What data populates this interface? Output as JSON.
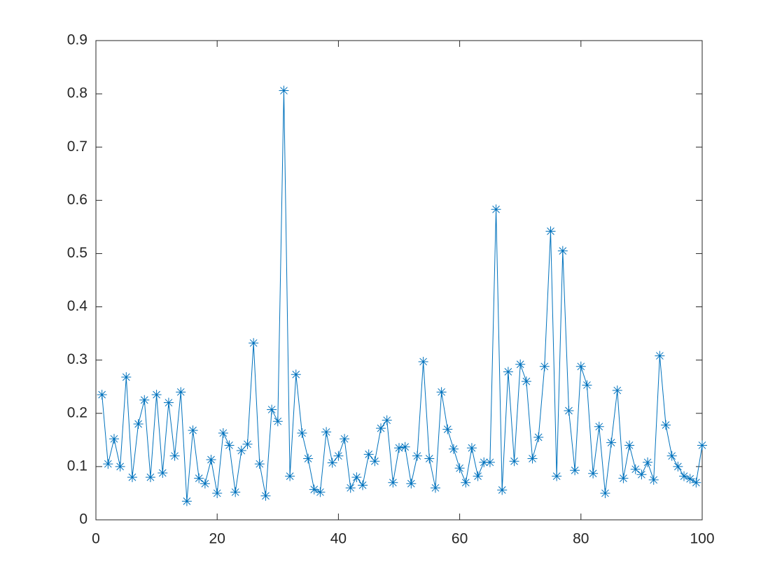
{
  "chart_data": {
    "type": "line",
    "marker": "asterisk",
    "color": "#0072bd",
    "x": [
      1,
      2,
      3,
      4,
      5,
      6,
      7,
      8,
      9,
      10,
      11,
      12,
      13,
      14,
      15,
      16,
      17,
      18,
      19,
      20,
      21,
      22,
      23,
      24,
      25,
      26,
      27,
      28,
      29,
      30,
      31,
      32,
      33,
      34,
      35,
      36,
      37,
      38,
      39,
      40,
      41,
      42,
      43,
      44,
      45,
      46,
      47,
      48,
      49,
      50,
      51,
      52,
      53,
      54,
      55,
      56,
      57,
      58,
      59,
      60,
      61,
      62,
      63,
      64,
      65,
      66,
      67,
      68,
      69,
      70,
      71,
      72,
      73,
      74,
      75,
      76,
      77,
      78,
      79,
      80,
      81,
      82,
      83,
      84,
      85,
      86,
      87,
      88,
      89,
      90,
      91,
      92,
      93,
      94,
      95,
      96,
      97,
      98,
      99,
      100
    ],
    "values": [
      0.235,
      0.105,
      0.152,
      0.1,
      0.268,
      0.08,
      0.18,
      0.225,
      0.08,
      0.235,
      0.088,
      0.22,
      0.12,
      0.24,
      0.035,
      0.168,
      0.078,
      0.068,
      0.113,
      0.05,
      0.163,
      0.14,
      0.052,
      0.13,
      0.142,
      0.332,
      0.105,
      0.045,
      0.207,
      0.185,
      0.806,
      0.082,
      0.273,
      0.163,
      0.115,
      0.057,
      0.052,
      0.165,
      0.107,
      0.12,
      0.152,
      0.06,
      0.08,
      0.065,
      0.123,
      0.11,
      0.172,
      0.187,
      0.07,
      0.135,
      0.137,
      0.068,
      0.12,
      0.297,
      0.115,
      0.06,
      0.24,
      0.17,
      0.133,
      0.097,
      0.07,
      0.135,
      0.082,
      0.108,
      0.108,
      0.583,
      0.056,
      0.278,
      0.11,
      0.292,
      0.26,
      0.115,
      0.155,
      0.288,
      0.542,
      0.082,
      0.505,
      0.205,
      0.093,
      0.288,
      0.253,
      0.087,
      0.175,
      0.05,
      0.145,
      0.243,
      0.078,
      0.14,
      0.095,
      0.085,
      0.108,
      0.075,
      0.308,
      0.178,
      0.12,
      0.1,
      0.082,
      0.077,
      0.07,
      0.14
    ],
    "xlim": [
      0,
      100
    ],
    "xticks": [
      0,
      20,
      40,
      60,
      80,
      100
    ],
    "ylim": [
      0,
      0.9
    ],
    "yticks": [
      0,
      0.1,
      0.2,
      0.3,
      0.4,
      0.5,
      0.6,
      0.7,
      0.8,
      0.9
    ]
  }
}
